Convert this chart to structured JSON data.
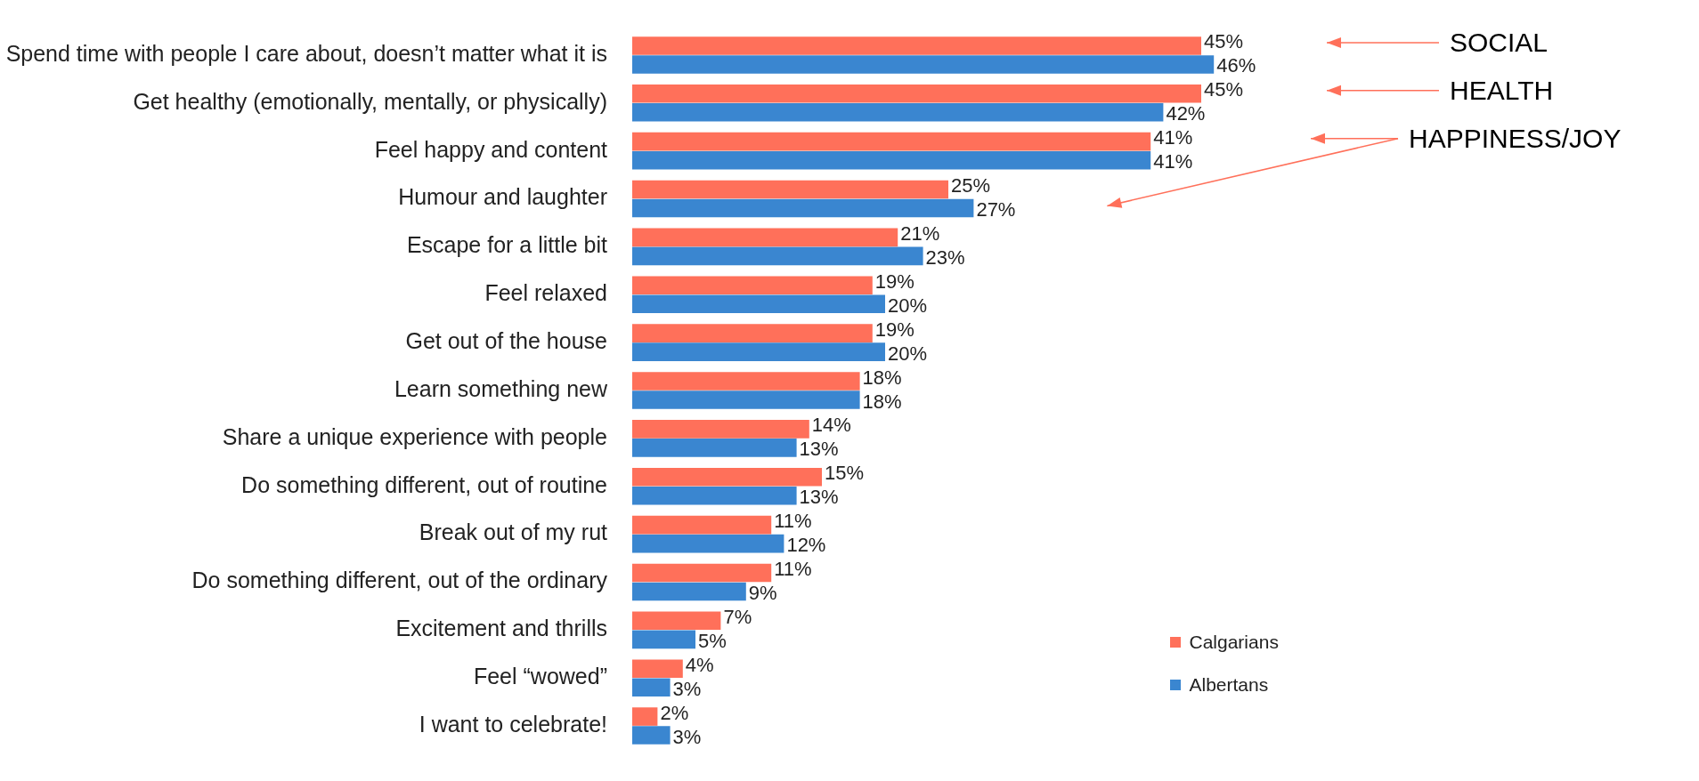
{
  "chart_data": {
    "type": "bar",
    "orientation": "horizontal",
    "legend": "bottom right",
    "categories": [
      "Spend time with people I care about, doesn’t matter what it is",
      "Get healthy (emotionally, mentally, or physically)",
      "Feel happy and content",
      "Humour and laughter",
      "Escape for a little bit",
      "Feel relaxed",
      "Get out of the house",
      "Learn something new",
      "Share a unique experience with people",
      "Do something different, out of routine",
      "Break out of my rut",
      "Do something different, out of the ordinary",
      "Excitement and thrills",
      "Feel “wowed”",
      "I want to celebrate!"
    ],
    "series": [
      {
        "name": "Calgarians",
        "color": "#ff705a",
        "values": [
          45,
          45,
          41,
          25,
          21,
          19,
          19,
          18,
          14,
          15,
          11,
          11,
          7,
          4,
          2
        ],
        "value_labels": [
          "45%",
          "45%",
          "41%",
          "25%",
          "21%",
          "19%",
          "19%",
          "18%",
          "14%",
          "15%",
          "11%",
          "11%",
          "7%",
          "4%",
          "2%"
        ]
      },
      {
        "name": "Albertans",
        "color": "#3a86d0",
        "values": [
          46,
          42,
          41,
          27,
          23,
          20,
          20,
          18,
          13,
          13,
          12,
          9,
          5,
          3,
          3
        ],
        "value_labels": [
          "46%",
          "42%",
          "41%",
          "27%",
          "23%",
          "20%",
          "20%",
          "18%",
          "13%",
          "13%",
          "12%",
          "9%",
          "5%",
          "3%",
          "3%"
        ]
      }
    ],
    "annotations": [
      "SOCIAL",
      "HEALTH",
      "HAPPINESS/JOY"
    ]
  }
}
